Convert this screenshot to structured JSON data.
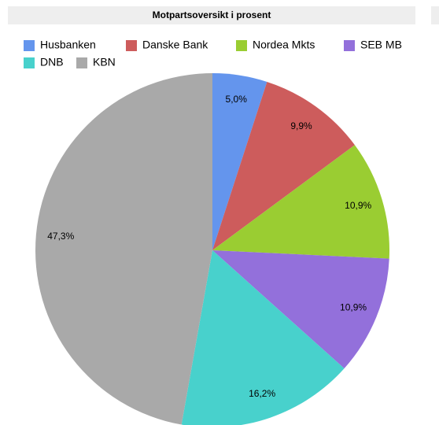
{
  "chart_data": {
    "type": "pie",
    "title": "Motpartsoversikt i prosent",
    "categories": [
      "Husbanken",
      "Danske Bank",
      "Nordea Mkts",
      "SEB MB",
      "DNB",
      "KBN"
    ],
    "values": [
      5.0,
      9.9,
      10.9,
      10.9,
      16.2,
      47.3
    ],
    "value_labels": [
      "5,0%",
      "9,9%",
      "10,9%",
      "10,9%",
      "16,2%",
      "47,3%"
    ],
    "colors": [
      "#6495ed",
      "#cd5c5c",
      "#9acd32",
      "#9370db",
      "#48d1cc",
      "#a9a9a9"
    ]
  }
}
